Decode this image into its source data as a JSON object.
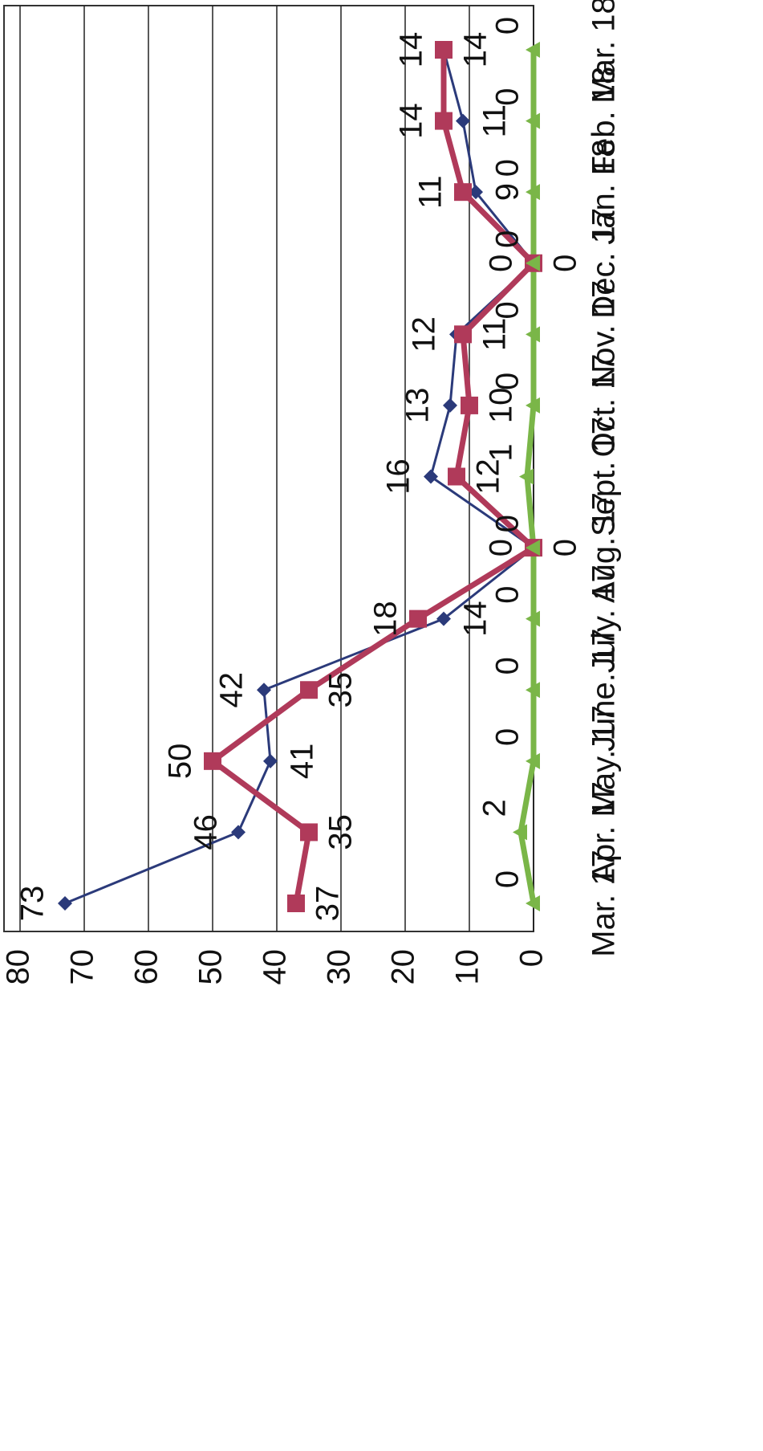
{
  "chart_data": {
    "type": "line",
    "categories": [
      "Mar. 17",
      "Apr. 17",
      "May. 17",
      "June. 17",
      "July. 17",
      "Aug. 17",
      "Sept. 17",
      "Oct. 17",
      "Nov. 17",
      "Dec. 17",
      "Jan. 18",
      "Feb. 18",
      "Mar. 18"
    ],
    "series": [
      {
        "color": "#2b3a7a",
        "marker": "diamond",
        "values": [
          73,
          46,
          41,
          42,
          14,
          0,
          16,
          13,
          12,
          0,
          9,
          11,
          14
        ]
      },
      {
        "color": "#b03a5a",
        "marker": "square",
        "values": [
          37,
          35,
          50,
          35,
          18,
          0,
          12,
          10,
          11,
          0,
          11,
          14,
          14
        ]
      },
      {
        "color": "#7ab648",
        "marker": "triangle",
        "values": [
          0,
          2,
          0,
          0,
          0,
          0,
          1,
          0,
          0,
          0,
          0,
          0,
          0
        ]
      }
    ],
    "ylim": [
      0,
      80
    ],
    "yticks": [
      0,
      10,
      20,
      30,
      40,
      50,
      60,
      70,
      80
    ],
    "grid": true
  }
}
